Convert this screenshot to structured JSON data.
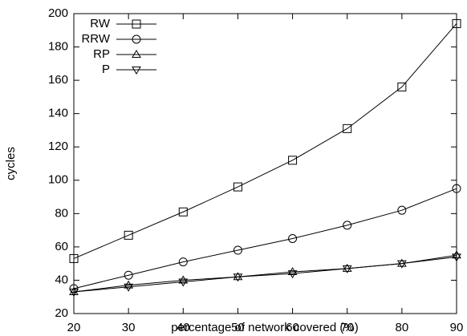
{
  "chart_data": {
    "type": "line",
    "x_label": "percentage of network covered (%)",
    "y_label": "cycles",
    "x": [
      20,
      30,
      40,
      50,
      60,
      70,
      80,
      90
    ],
    "xlim": [
      20,
      90
    ],
    "xticks": [
      20,
      30,
      40,
      50,
      60,
      70,
      80,
      90
    ],
    "ylim": [
      20,
      200
    ],
    "yticks": [
      20,
      40,
      60,
      80,
      100,
      120,
      140,
      160,
      180,
      200
    ],
    "legend": "top-left",
    "series": [
      {
        "name": "RW",
        "color": "#000000",
        "marker": "square",
        "values": [
          53,
          67,
          81,
          96,
          112,
          131,
          156,
          194
        ]
      },
      {
        "name": "RRW",
        "color": "#000000",
        "marker": "circle",
        "values": [
          35,
          43,
          51,
          58,
          65,
          73,
          82,
          95
        ]
      },
      {
        "name": "RP",
        "color": "#000000",
        "marker": "triangle-up",
        "values": [
          33,
          37,
          40,
          42,
          45,
          47,
          50,
          55
        ]
      },
      {
        "name": "P",
        "color": "#000000",
        "marker": "triangle-down",
        "values": [
          33,
          36,
          39,
          42,
          44,
          47,
          50,
          54
        ]
      }
    ]
  }
}
